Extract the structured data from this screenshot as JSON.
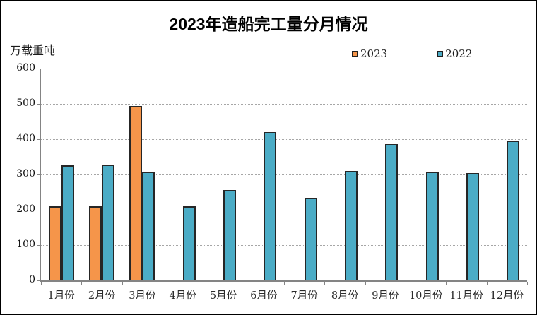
{
  "chart_data": {
    "type": "bar",
    "title": "2023年造船完工量分月情况",
    "unit_label": "万载重吨",
    "categories": [
      "1月份",
      "2月份",
      "3月份",
      "4月份",
      "5月份",
      "6月份",
      "7月份",
      "8月份",
      "9月份",
      "10月份",
      "11月份",
      "12月份"
    ],
    "series": [
      {
        "name": "2023",
        "color": "#F5954A",
        "values": [
          210,
          211,
          494,
          null,
          null,
          null,
          null,
          null,
          null,
          null,
          null,
          null
        ]
      },
      {
        "name": "2022",
        "color": "#4BACC6",
        "values": [
          326,
          329,
          308,
          210,
          256,
          421,
          235,
          310,
          386,
          308,
          304,
          396
        ]
      }
    ],
    "ylim": [
      0,
      600
    ],
    "ytick_step": 100,
    "xlabel": "",
    "ylabel": "",
    "grid": "horizontal-dotted",
    "legend_position": "top-right",
    "colors": {
      "bar_border": "#262626",
      "axis_line": "#848484",
      "gridline": "#a6a6a6",
      "text": "#000000"
    }
  }
}
